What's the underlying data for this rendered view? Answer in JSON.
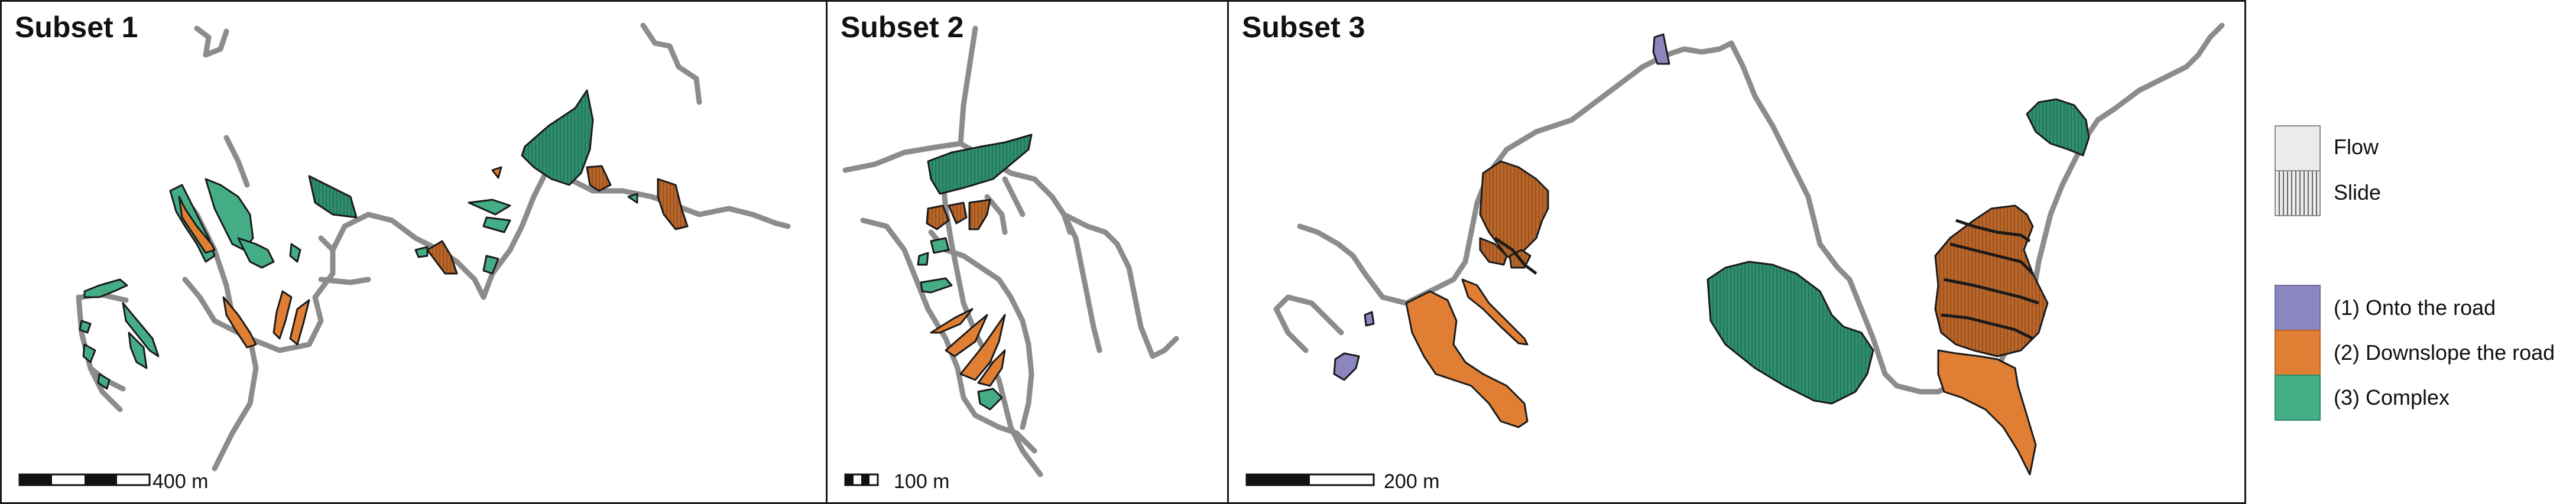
{
  "panels": [
    {
      "title": "Subset 1",
      "scale_label": "400 m"
    },
    {
      "title": "Subset 2",
      "scale_label": "100 m"
    },
    {
      "title": "Subset 3",
      "scale_label": "200 m"
    }
  ],
  "legend": {
    "movement": [
      {
        "label": "Flow",
        "pattern": "solid"
      },
      {
        "label": "Slide",
        "pattern": "vertical-hatch"
      }
    ],
    "impact": [
      {
        "label": "(1) Onto the road",
        "color": "#8b86bf"
      },
      {
        "label": "(2) Downslope the road",
        "color": "#e07f34"
      },
      {
        "label": "(3) Complex",
        "color": "#44ad86"
      }
    ]
  },
  "colors": {
    "road": "#8c8c8c",
    "outline": "#1a1a1a",
    "flow_fill": "#ebebeb"
  }
}
